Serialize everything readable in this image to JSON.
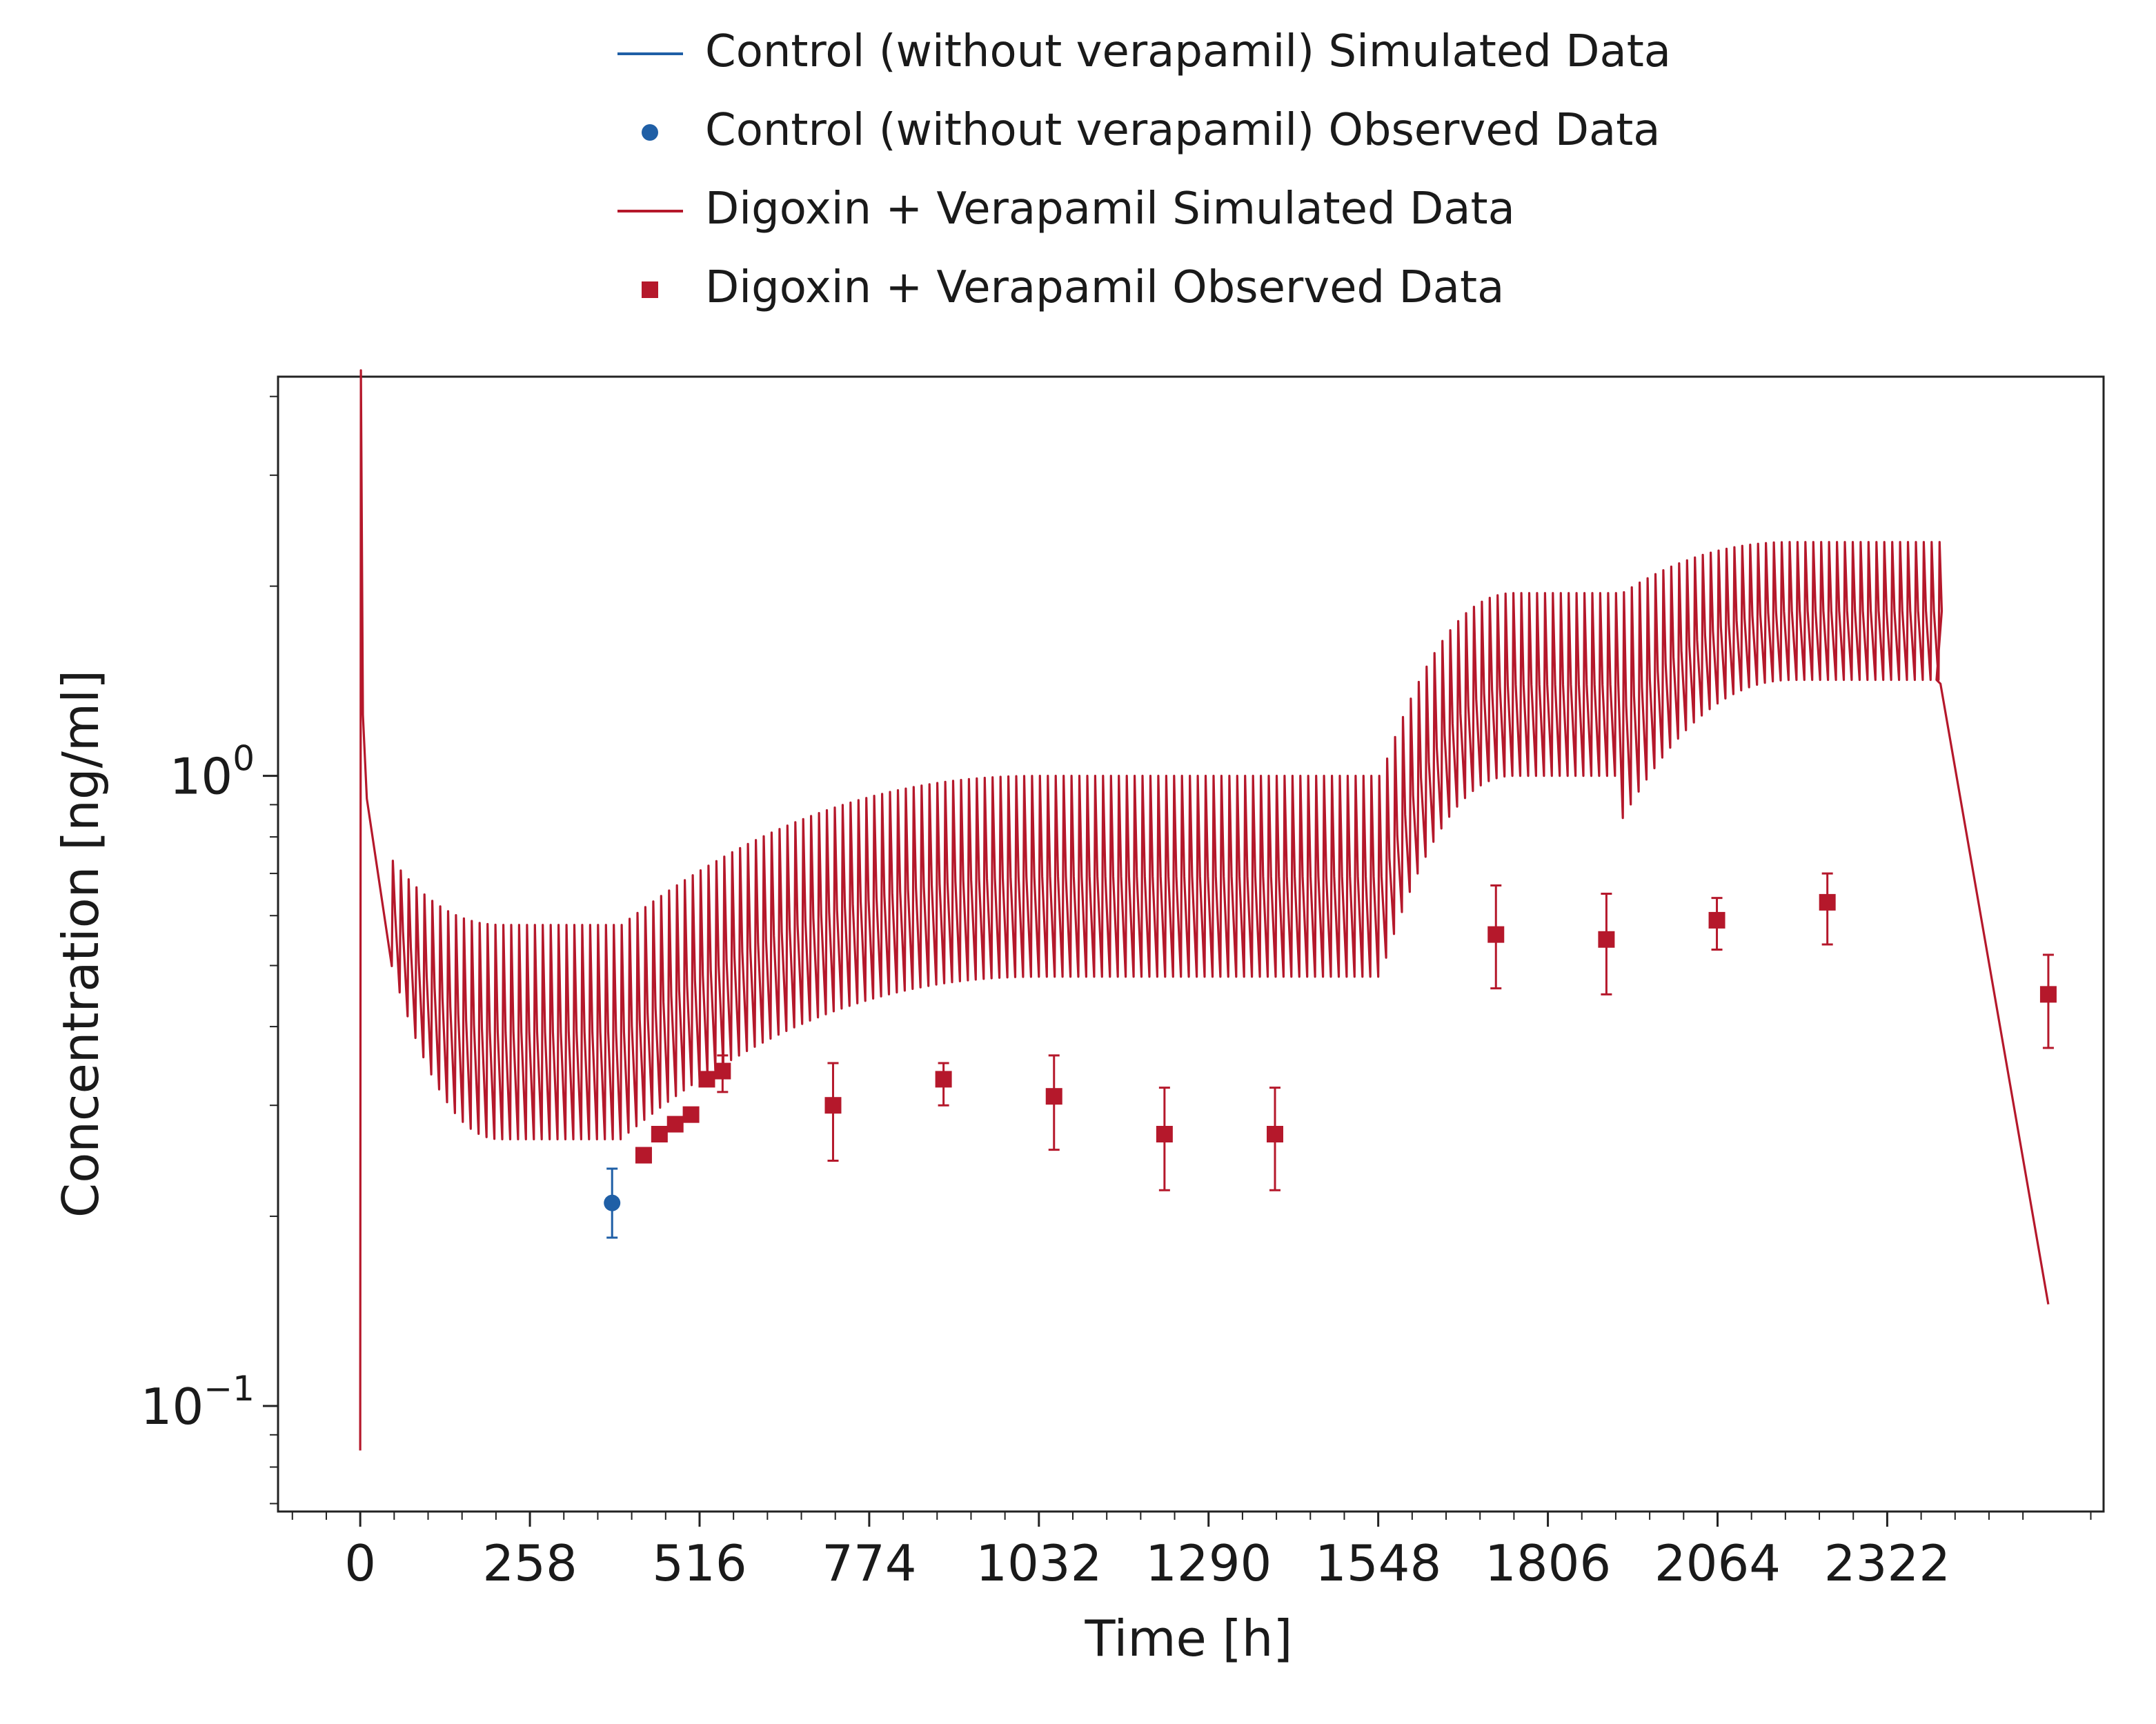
{
  "chart_data": {
    "type": "line",
    "title": "",
    "xlabel": "Time [h]",
    "ylabel": "Concentration [ng/ml]",
    "y_scale": "log",
    "xlim": [
      -125,
      2651
    ],
    "ylim": [
      0.068,
      4.3
    ],
    "x_ticks": [
      0,
      258,
      516,
      774,
      1032,
      1290,
      1548,
      1806,
      2064,
      2322
    ],
    "x_tick_labels": [
      "0",
      "258",
      "516",
      "774",
      "1032",
      "1290",
      "1548",
      "1806",
      "2064",
      "2322"
    ],
    "y_major_ticks": [
      {
        "value": 1.0,
        "base": "10",
        "exp": "0"
      },
      {
        "value": 0.1,
        "base": "10",
        "exp": "−1"
      }
    ],
    "grid": false,
    "legend_position": "top-center, above plot",
    "legend": [
      {
        "label": "Control (without verapamil) Simulated Data",
        "marker": "line",
        "color": "#1f5fa6"
      },
      {
        "label": "Control (without verapamil) Observed Data",
        "marker": "circle",
        "color": "#1f5fa6"
      },
      {
        "label": "Digoxin + Verapamil Simulated Data",
        "marker": "line",
        "color": "#b5182b"
      },
      {
        "label": "Digoxin + Verapamil Observed Data",
        "marker": "square",
        "color": "#b5182b"
      }
    ],
    "series": [
      {
        "name": "Control (without verapamil) Observed Data",
        "kind": "points",
        "color": "#1f5fa6",
        "points": [
          {
            "x": 383,
            "y": 0.21,
            "lo": 0.185,
            "hi": 0.238
          }
        ]
      },
      {
        "name": "Digoxin + Verapamil Observed Data",
        "kind": "points",
        "color": "#b5182b",
        "points": [
          {
            "x": 431,
            "y": 0.25,
            "lo": 0.25,
            "hi": 0.25
          },
          {
            "x": 455,
            "y": 0.27,
            "lo": 0.27,
            "hi": 0.27
          },
          {
            "x": 479,
            "y": 0.28,
            "lo": 0.28,
            "hi": 0.28
          },
          {
            "x": 503,
            "y": 0.29,
            "lo": 0.29,
            "hi": 0.29
          },
          {
            "x": 527,
            "y": 0.33,
            "lo": 0.33,
            "hi": 0.33
          },
          {
            "x": 551,
            "y": 0.34,
            "lo": 0.315,
            "hi": 0.36
          },
          {
            "x": 719,
            "y": 0.3,
            "lo": 0.245,
            "hi": 0.35
          },
          {
            "x": 887,
            "y": 0.33,
            "lo": 0.3,
            "hi": 0.35
          },
          {
            "x": 1055,
            "y": 0.31,
            "lo": 0.255,
            "hi": 0.36
          },
          {
            "x": 1223,
            "y": 0.27,
            "lo": 0.22,
            "hi": 0.32
          },
          {
            "x": 1391,
            "y": 0.27,
            "lo": 0.22,
            "hi": 0.32
          },
          {
            "x": 1727,
            "y": 0.56,
            "lo": 0.46,
            "hi": 0.67
          },
          {
            "x": 1895,
            "y": 0.55,
            "lo": 0.45,
            "hi": 0.65
          },
          {
            "x": 2063,
            "y": 0.59,
            "lo": 0.53,
            "hi": 0.64
          },
          {
            "x": 2231,
            "y": 0.63,
            "lo": 0.54,
            "hi": 0.7
          },
          {
            "x": 2567,
            "y": 0.45,
            "lo": 0.37,
            "hi": 0.52
          }
        ]
      },
      {
        "name": "Digoxin + Verapamil Simulated Data",
        "kind": "line",
        "color": "#b5182b",
        "dosing_interval_h": 12,
        "initial_dose": {
          "x_start": 0,
          "y_start": 0.085,
          "y_peak": 4.4,
          "y_after": 0.92
        },
        "segments": [
          {
            "x_start": 0,
            "x_end": 408,
            "trough_start": 0.92,
            "trough_end": 0.265,
            "peak_start": 0.92,
            "peak_end": 0.58
          },
          {
            "x_start": 408,
            "x_end": 1563,
            "trough_start": 0.265,
            "trough_end": 0.48,
            "peak_start": 0.58,
            "peak_end": 1.0
          },
          {
            "x_start": 1563,
            "x_end": 1930,
            "trough_start": 0.48,
            "trough_end": 1.0,
            "peak_start": 1.0,
            "peak_end": 1.95
          },
          {
            "x_start": 1930,
            "x_end": 2403,
            "trough_start": 0.85,
            "trough_end": 1.42,
            "peak_start": 1.95,
            "peak_end": 2.35
          }
        ],
        "washout": {
          "x_start": 2403,
          "y_start": 1.4,
          "x_end": 2567,
          "y_end": 0.145
        }
      }
    ]
  }
}
